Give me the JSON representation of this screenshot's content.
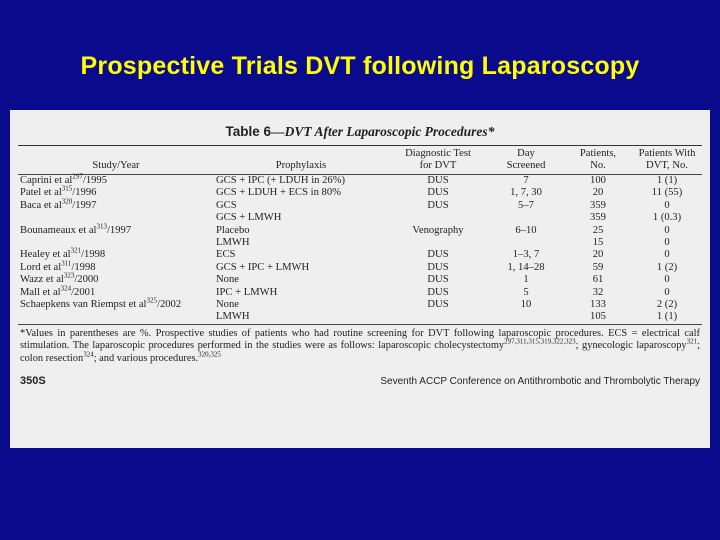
{
  "slide": {
    "title": "Prospective Trials DVT following Laparoscopy"
  },
  "table": {
    "caption_prefix": "Table 6",
    "caption_text": "—DVT After Laparoscopic Procedures*",
    "headers": {
      "study": "Study/Year",
      "prophylaxis": "Prophylaxis",
      "test_line1": "Diagnostic Test",
      "test_line2": "for DVT",
      "day_line1": "Day",
      "day_line2": "Screened",
      "patients_line1": "Patients,",
      "patients_line2": "No.",
      "dvt_line1": "Patients With",
      "dvt_line2": "DVT, No."
    },
    "rows": [
      {
        "study": "Caprini et al",
        "ref": "297",
        "year": "/1995",
        "prophylaxis": "GCS + IPC (+ LDUH in 26%)",
        "test": "DUS",
        "day": "7",
        "patients": "100",
        "dvt": "1 (1)"
      },
      {
        "study": "Patel et al",
        "ref": "315",
        "year": "/1996",
        "prophylaxis": "GCS + LDUH + ECS in 80%",
        "test": "DUS",
        "day": "1, 7, 30",
        "patients": "20",
        "dvt": "11 (55)"
      },
      {
        "study": "Baca et al",
        "ref": "320",
        "year": "/1997",
        "prophylaxis": "GCS",
        "test": "DUS",
        "day": "5–7",
        "patients": "359",
        "dvt": "0"
      },
      {
        "study": "",
        "ref": "",
        "year": "",
        "prophylaxis": "GCS + LMWH",
        "test": "",
        "day": "",
        "patients": "359",
        "dvt": "1 (0.3)"
      },
      {
        "study": "Bounameaux et al",
        "ref": "313",
        "year": "/1997",
        "prophylaxis": "Placebo",
        "test": "Venography",
        "day": "6–10",
        "patients": "25",
        "dvt": "0"
      },
      {
        "study": "",
        "ref": "",
        "year": "",
        "prophylaxis": "LMWH",
        "test": "",
        "day": "",
        "patients": "15",
        "dvt": "0"
      },
      {
        "study": "Healey et al",
        "ref": "321",
        "year": "/1998",
        "prophylaxis": "ECS",
        "test": "DUS",
        "day": "1–3, 7",
        "patients": "20",
        "dvt": "0"
      },
      {
        "study": "Lord et al",
        "ref": "311",
        "year": "/1998",
        "prophylaxis": "GCS + IPC + LMWH",
        "test": "DUS",
        "day": "1, 14–28",
        "patients": "59",
        "dvt": "1 (2)"
      },
      {
        "study": "Wazz et al",
        "ref": "323",
        "year": "/2000",
        "prophylaxis": "None",
        "test": "DUS",
        "day": "1",
        "patients": "61",
        "dvt": "0"
      },
      {
        "study": "Mall et al",
        "ref": "324",
        "year": "/2001",
        "prophylaxis": "IPC + LMWH",
        "test": "DUS",
        "day": "5",
        "patients": "32",
        "dvt": "0"
      },
      {
        "study": "Schaepkens van Riempst et al",
        "ref": "325",
        "year": "/2002",
        "prophylaxis": "None",
        "test": "DUS",
        "day": "10",
        "patients": "133",
        "dvt": "2 (2)"
      },
      {
        "study": "",
        "ref": "",
        "year": "",
        "prophylaxis": "LMWH",
        "test": "",
        "day": "",
        "patients": "105",
        "dvt": "1 (1)"
      }
    ],
    "footnote": {
      "part1": "*Values in parentheses are %. Prospective studies of patients who had routine screening for DVT following laparoscopic procedures. ECS = electrical calf stimulation. The laparoscopic procedures performed in the studies were as follows: laparoscopic cholecystectomy",
      "ref1": "297,311,315,319,322,323",
      "part2": "; gynecologic laparoscopy",
      "ref2": "321",
      "part3": "; colon resection",
      "ref3": "324",
      "part4": "; and various procedures.",
      "ref4": "320,325"
    },
    "footer": {
      "page": "350S",
      "conference": "Seventh ACCP Conference on Antithrombotic and Thrombolytic Therapy"
    }
  }
}
